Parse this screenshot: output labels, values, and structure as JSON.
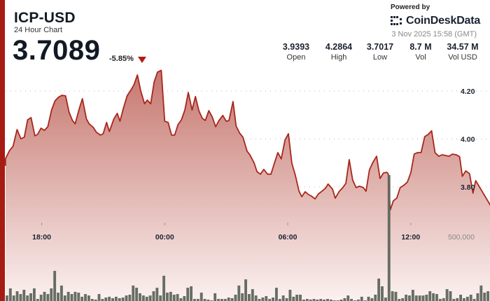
{
  "header": {
    "symbol": "ICP-USD",
    "subtitle": "24 Hour Chart",
    "price": "3.7089",
    "change": "-5.85%",
    "change_direction_icon": "triangle-down-icon"
  },
  "branding": {
    "powered_by": "Powered by",
    "logo_text": "CoinDeskData",
    "timestamp": "3 Nov 2025 15:58 (GMT)"
  },
  "stats": [
    {
      "value": "3.9393",
      "label": "Open"
    },
    {
      "value": "4.2864",
      "label": "High"
    },
    {
      "value": "3.7017",
      "label": "Low"
    },
    {
      "value": "8.7 M",
      "label": "Vol"
    },
    {
      "value": "34.57 M",
      "label": "Vol USD"
    }
  ],
  "colors": {
    "accent": "#a61c12",
    "line": "#a8261c",
    "fill_top": "#c6776f",
    "fill_bottom": "#fbf1f0",
    "volume_bar": "#5f665d",
    "down": "#b01c12"
  },
  "chart_data": {
    "type": "area",
    "x_range": [
      "15:58",
      "15:58"
    ],
    "x_ticks": [
      "18:00",
      "00:00",
      "06:00",
      "12:00"
    ],
    "y_ticks": [
      "4.20",
      "4.00",
      "3.80"
    ],
    "y_tick_values": [
      4.2,
      4.0,
      3.8
    ],
    "grid": true,
    "price_points": [
      [
        "16:14",
        3.917
      ],
      [
        "16:26",
        3.952
      ],
      [
        "16:36",
        3.969
      ],
      [
        "16:48",
        4.039
      ],
      [
        "16:59",
        4.001
      ],
      [
        "17:09",
        4.007
      ],
      [
        "17:19",
        4.08
      ],
      [
        "17:29",
        4.089
      ],
      [
        "17:40",
        4.013
      ],
      [
        "17:48",
        4.019
      ],
      [
        "17:58",
        4.045
      ],
      [
        "18:08",
        4.036
      ],
      [
        "18:18",
        4.051
      ],
      [
        "18:29",
        4.121
      ],
      [
        "18:39",
        4.159
      ],
      [
        "18:49",
        4.174
      ],
      [
        "18:59",
        4.182
      ],
      [
        "19:10",
        4.18
      ],
      [
        "19:20",
        4.112
      ],
      [
        "19:30",
        4.077
      ],
      [
        "19:38",
        4.063
      ],
      [
        "19:50",
        4.127
      ],
      [
        "19:59",
        4.168
      ],
      [
        "20:11",
        4.083
      ],
      [
        "20:19",
        4.063
      ],
      [
        "20:31",
        4.048
      ],
      [
        "20:40",
        4.028
      ],
      [
        "20:52",
        4.016
      ],
      [
        "21:00",
        4.022
      ],
      [
        "21:10",
        4.069
      ],
      [
        "21:18",
        4.031
      ],
      [
        "21:31",
        4.083
      ],
      [
        "21:41",
        4.107
      ],
      [
        "21:49",
        4.074
      ],
      [
        "21:59",
        4.127
      ],
      [
        "22:10",
        4.18
      ],
      [
        "22:22",
        4.206
      ],
      [
        "22:30",
        4.226
      ],
      [
        "22:40",
        4.267
      ],
      [
        "22:50",
        4.2
      ],
      [
        "23:01",
        4.147
      ],
      [
        "23:09",
        4.162
      ],
      [
        "23:19",
        4.147
      ],
      [
        "23:29",
        4.238
      ],
      [
        "23:39",
        4.279
      ],
      [
        "23:50",
        4.286
      ],
      [
        "00:00",
        4.074
      ],
      [
        "00:10",
        4.069
      ],
      [
        "00:20",
        4.016
      ],
      [
        "00:29",
        4.016
      ],
      [
        "00:39",
        4.06
      ],
      [
        "00:49",
        4.08
      ],
      [
        "00:59",
        4.121
      ],
      [
        "01:09",
        4.194
      ],
      [
        "01:20",
        4.121
      ],
      [
        "01:30",
        4.177
      ],
      [
        "01:40",
        4.118
      ],
      [
        "01:50",
        4.086
      ],
      [
        "01:59",
        4.077
      ],
      [
        "02:09",
        4.118
      ],
      [
        "02:19",
        4.092
      ],
      [
        "02:29",
        4.051
      ],
      [
        "02:39",
        4.077
      ],
      [
        "02:50",
        4.098
      ],
      [
        "03:00",
        4.074
      ],
      [
        "03:08",
        4.077
      ],
      [
        "03:20",
        4.156
      ],
      [
        "03:29",
        4.054
      ],
      [
        "03:39",
        4.025
      ],
      [
        "03:49",
        4.007
      ],
      [
        "04:01",
        3.949
      ],
      [
        "04:09",
        3.934
      ],
      [
        "04:22",
        3.899
      ],
      [
        "04:30",
        3.864
      ],
      [
        "04:40",
        3.853
      ],
      [
        "04:50",
        3.873
      ],
      [
        "05:01",
        3.853
      ],
      [
        "05:11",
        3.853
      ],
      [
        "05:21",
        3.899
      ],
      [
        "05:31",
        3.943
      ],
      [
        "05:41",
        3.917
      ],
      [
        "05:52",
        3.996
      ],
      [
        "06:02",
        4.022
      ],
      [
        "06:12",
        3.899
      ],
      [
        "06:22",
        3.85
      ],
      [
        "06:33",
        3.782
      ],
      [
        "06:41",
        3.759
      ],
      [
        "06:51",
        3.78
      ],
      [
        "07:01",
        3.768
      ],
      [
        "07:09",
        3.762
      ],
      [
        "07:20",
        3.75
      ],
      [
        "07:30",
        3.771
      ],
      [
        "07:40",
        3.782
      ],
      [
        "07:50",
        3.794
      ],
      [
        "07:58",
        3.812
      ],
      [
        "08:11",
        3.791
      ],
      [
        "08:19",
        3.753
      ],
      [
        "08:31",
        3.782
      ],
      [
        "08:41",
        3.797
      ],
      [
        "08:50",
        3.815
      ],
      [
        "09:00",
        3.914
      ],
      [
        "09:10",
        3.829
      ],
      [
        "09:20",
        3.797
      ],
      [
        "09:30",
        3.803
      ],
      [
        "09:41",
        3.797
      ],
      [
        "09:49",
        3.782
      ],
      [
        "09:59",
        3.87
      ],
      [
        "10:09",
        3.902
      ],
      [
        "10:20",
        3.928
      ],
      [
        "10:30",
        3.835
      ],
      [
        "10:40",
        3.858
      ],
      [
        "10:50",
        3.861
      ],
      [
        "10:54",
        3.855
      ],
      [
        "11:00",
        3.704
      ],
      [
        "11:09",
        3.742
      ],
      [
        "11:19",
        3.753
      ],
      [
        "11:29",
        3.797
      ],
      [
        "11:39",
        3.806
      ],
      [
        "11:50",
        3.82
      ],
      [
        "12:00",
        3.858
      ],
      [
        "12:10",
        3.937
      ],
      [
        "12:20",
        3.943
      ],
      [
        "12:30",
        3.943
      ],
      [
        "12:41",
        4.01
      ],
      [
        "12:51",
        4.019
      ],
      [
        "13:01",
        4.034
      ],
      [
        "13:11",
        3.943
      ],
      [
        "13:22",
        3.928
      ],
      [
        "13:32",
        3.934
      ],
      [
        "13:42",
        3.931
      ],
      [
        "13:52",
        3.928
      ],
      [
        "14:02",
        3.937
      ],
      [
        "14:13",
        3.934
      ],
      [
        "14:23",
        3.926
      ],
      [
        "14:31",
        3.844
      ],
      [
        "14:41",
        3.867
      ],
      [
        "14:52",
        3.855
      ],
      [
        "15:02",
        3.774
      ],
      [
        "15:10",
        3.826
      ],
      [
        "15:49",
        3.733
      ],
      [
        "15:58",
        3.709
      ]
    ],
    "volume_tick_label": "500,000",
    "volume_tick_value": 500000,
    "volumes": [
      43000,
      98000,
      43000,
      76000,
      54000,
      87000,
      43000,
      60000,
      98000,
      16000,
      49000,
      71000,
      54000,
      98000,
      234000,
      65000,
      120000,
      43000,
      71000,
      54000,
      71000,
      65000,
      33000,
      54000,
      43000,
      16000,
      11000,
      54000,
      16000,
      27000,
      33000,
      22000,
      33000,
      22000,
      27000,
      43000,
      49000,
      120000,
      103000,
      60000,
      43000,
      33000,
      43000,
      76000,
      103000,
      43000,
      196000,
      65000,
      71000,
      49000,
      54000,
      22000,
      38000,
      103000,
      114000,
      16000,
      16000,
      65000,
      16000,
      11000,
      5000,
      60000,
      16000,
      16000,
      16000,
      27000,
      22000,
      49000,
      120000,
      60000,
      168000,
      54000,
      92000,
      43000,
      16000,
      27000,
      38000,
      16000,
      27000,
      103000,
      16000,
      43000,
      22000,
      87000,
      33000,
      49000,
      49000,
      11000,
      16000,
      11000,
      16000,
      11000,
      16000,
      11000,
      16000,
      11000,
      5000,
      5000,
      11000,
      22000,
      43000,
      16000,
      5000,
      11000,
      33000,
      5000,
      33000,
      22000,
      49000,
      174000,
      114000,
      27000,
      978000,
      76000,
      71000,
      16000,
      22000,
      49000,
      43000,
      87000,
      43000,
      43000,
      43000,
      49000,
      76000,
      60000,
      54000,
      16000,
      22000,
      92000,
      76000,
      16000,
      22000,
      49000,
      22000,
      33000,
      49000,
      16000,
      60000,
      120000,
      65000,
      76000
    ]
  }
}
